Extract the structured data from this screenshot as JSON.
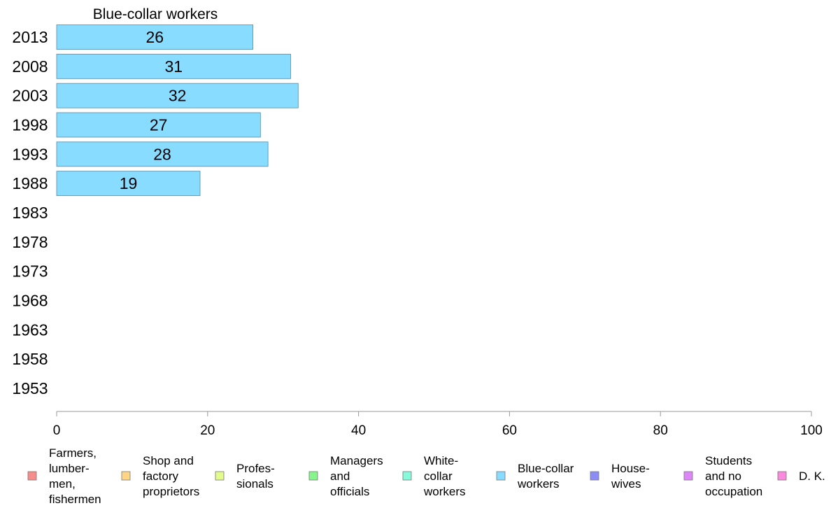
{
  "chart_data": {
    "type": "bar",
    "orientation": "horizontal",
    "title": "Blue-collar workers",
    "categories": [
      "2013",
      "2008",
      "2003",
      "1998",
      "1993",
      "1988",
      "1983",
      "1978",
      "1973",
      "1968",
      "1963",
      "1958",
      "1953"
    ],
    "series": [
      {
        "name": "Blue-collar workers",
        "values": [
          26,
          31,
          32,
          27,
          28,
          19,
          null,
          null,
          null,
          null,
          null,
          null,
          null
        ],
        "color": "#87dcff"
      }
    ],
    "data_labels": [
      "26",
      "31",
      "32",
      "27",
      "28",
      "19",
      "",
      "",
      "",
      "",
      "",
      "",
      ""
    ],
    "xlim": [
      0,
      100
    ],
    "xticks": [
      0,
      20,
      40,
      60,
      80,
      100
    ],
    "grid": false,
    "legend": {
      "position": "bottom",
      "items": [
        {
          "label": "Farmers, lumber- men, fishermen",
          "lines": [
            "Farmers,",
            "lumber-",
            "men,",
            "fishermen"
          ],
          "color": "#f78c8c"
        },
        {
          "label": "Shop and factory proprietors",
          "lines": [
            "Shop and",
            "factory",
            "proprietors"
          ],
          "color": "#fdd585"
        },
        {
          "label": "Profes- sionals",
          "lines": [
            "Profes-",
            "sionals"
          ],
          "color": "#e3fb8c"
        },
        {
          "label": "Managers and officials",
          "lines": [
            "Managers",
            "and",
            "officials"
          ],
          "color": "#86f68c"
        },
        {
          "label": "White- collar workers",
          "lines": [
            "White-",
            "collar",
            "workers"
          ],
          "color": "#86fadb"
        },
        {
          "label": "Blue-collar workers",
          "lines": [
            "Blue-collar",
            "workers"
          ],
          "color": "#87dcff"
        },
        {
          "label": "House- wives",
          "lines": [
            "House-",
            "wives"
          ],
          "color": "#8c8cf6"
        },
        {
          "label": "Students and no occupation",
          "lines": [
            "Students",
            "and no",
            "occupation"
          ],
          "color": "#dc86f8"
        },
        {
          "label": "D. K.",
          "lines": [
            "D. K."
          ],
          "color": "#f98adc"
        }
      ]
    }
  }
}
